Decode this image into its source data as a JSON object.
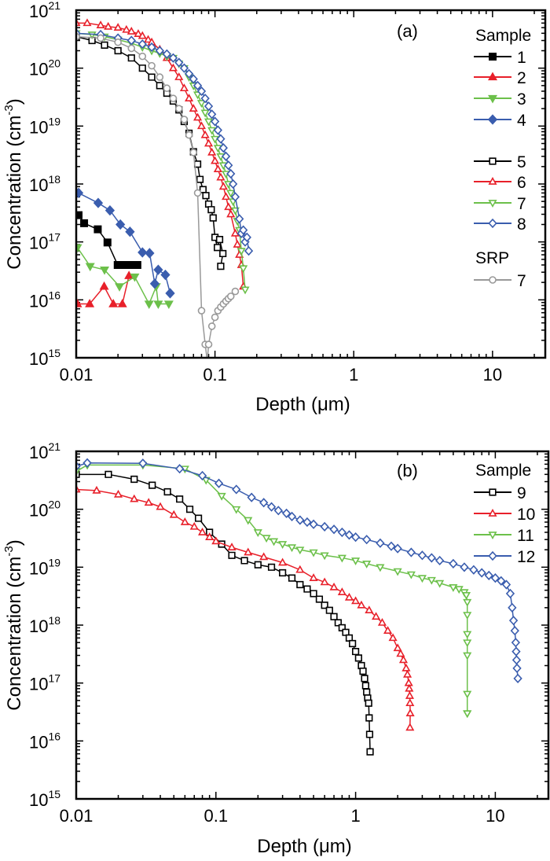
{
  "chart_data": [
    {
      "type": "scatter",
      "panel_label": "(a)",
      "xlabel": "Depth (μm)",
      "ylabel": "Concentration (cm",
      "ylabel_sup": "-3",
      "ylabel_end": ")",
      "xscale": "log",
      "yscale": "log",
      "xlim": [
        0.01,
        24
      ],
      "ylim": [
        1000000000000000.0,
        1e+21
      ],
      "x_ticks": [
        "0.01",
        "0.1",
        "1",
        "10"
      ],
      "y_ticks": [
        "15",
        "16",
        "17",
        "18",
        "19",
        "20",
        "21"
      ],
      "y_tick_base": "10",
      "grid": false,
      "legend_placement": "top-right",
      "legend_headings": [
        "Sample",
        "SRP"
      ],
      "series": [
        {
          "name": "1",
          "color": "#000000",
          "marker": "square",
          "filled": true,
          "group": "Sample",
          "x": [
            0.0104,
            0.0114,
            0.0143,
            0.0168,
            0.0199,
            0.0222,
            0.0247,
            0.0276
          ],
          "y": [
            2.9e+17,
            2.1e+17,
            1.65e+17,
            9.8e+16,
            4e+16,
            4e+16,
            4e+16,
            4e+16
          ]
        },
        {
          "name": "2",
          "color": "#e8202a",
          "marker": "triangle-up",
          "filled": true,
          "group": "Sample",
          "x": [
            0.0102,
            0.0125,
            0.0159,
            0.0185,
            0.0215,
            0.024
          ],
          "y": [
            8500000000000000.0,
            8500000000000000.0,
            1.7e+16,
            8500000000000000.0,
            8500000000000000.0,
            2.6e+16
          ]
        },
        {
          "name": "3",
          "color": "#6cc04a",
          "marker": "triangle-down",
          "filled": true,
          "group": "Sample",
          "x": [
            0.0102,
            0.0126,
            0.016,
            0.0205,
            0.0264,
            0.0335,
            0.0377,
            0.039,
            0.0465
          ],
          "y": [
            8e+16,
            3.8e+16,
            3.3e+16,
            1.7e+16,
            2.5e+16,
            8500000000000000.0,
            1.7e+16,
            8500000000000000.0,
            8500000000000000.0
          ]
        },
        {
          "name": "4",
          "color": "#3a5dae",
          "marker": "diamond",
          "filled": true,
          "group": "Sample",
          "x": [
            0.0104,
            0.0144,
            0.0175,
            0.0208,
            0.0244,
            0.03,
            0.0338,
            0.0368,
            0.039,
            0.0439,
            0.0475
          ],
          "y": [
            7e+17,
            4.7e+17,
            3.5e+17,
            2e+17,
            1.5e+17,
            6.6e+16,
            6.4e+16,
            1.9e+16,
            3.3e+16,
            2.7e+16,
            1.3e+16
          ]
        },
        {
          "name": "5",
          "color": "#000000",
          "marker": "square",
          "filled": false,
          "group": "Sample",
          "x": [
            0.01,
            0.013,
            0.016,
            0.02,
            0.025,
            0.03,
            0.035,
            0.04,
            0.045,
            0.05,
            0.055,
            0.06,
            0.065,
            0.07,
            0.075,
            0.078,
            0.082,
            0.086,
            0.09,
            0.094,
            0.097,
            0.1,
            0.104,
            0.108,
            0.114,
            0.11
          ],
          "y": [
            3.5e+20,
            3e+20,
            2.5e+20,
            2e+20,
            1.5e+20,
            1e+20,
            7e+19,
            5e+19,
            3.7e+19,
            2.7e+19,
            1.9e+19,
            1.2e+19,
            7.5e+18,
            3.6e+18,
            2.2e+18,
            1.2e+18,
            8e+17,
            6.3e+17,
            4.5e+17,
            3.6e+17,
            2.6e+17,
            1.2e+17,
            8e+16,
            1.1e+17,
            6.3e+16,
            3.8e+16
          ]
        },
        {
          "name": "6",
          "color": "#e8202a",
          "marker": "triangle-up",
          "filled": false,
          "group": "Sample",
          "x": [
            0.01,
            0.012,
            0.015,
            0.017,
            0.02,
            0.023,
            0.025,
            0.028,
            0.03,
            0.033,
            0.035,
            0.04,
            0.045,
            0.05,
            0.055,
            0.06,
            0.065,
            0.07,
            0.075,
            0.08,
            0.085,
            0.09,
            0.095,
            0.1,
            0.105,
            0.11,
            0.115,
            0.12,
            0.125,
            0.13,
            0.14,
            0.145,
            0.15,
            0.155,
            0.16
          ],
          "y": [
            6e+20,
            6e+20,
            5.5e+20,
            5.2e+20,
            5e+20,
            4.6e+20,
            4.3e+20,
            3.9e+20,
            3.6e+20,
            3.1e+20,
            2.8e+20,
            2.1e+20,
            1.5e+20,
            1e+20,
            7e+19,
            4.5e+19,
            3e+19,
            2e+19,
            1.4e+19,
            1e+19,
            7e+18,
            5e+18,
            3.5e+18,
            2.5e+18,
            1.8e+18,
            1.3e+18,
            9e+17,
            6e+17,
            4e+17,
            3e+17,
            1.4e+17,
            9e+16,
            6e+16,
            4e+16,
            1.7e+16
          ]
        },
        {
          "name": "7",
          "color": "#6cc04a",
          "marker": "triangle-down",
          "filled": false,
          "group": "Sample",
          "x": [
            0.01,
            0.013,
            0.016,
            0.02,
            0.025,
            0.03,
            0.035,
            0.04,
            0.045,
            0.05,
            0.055,
            0.06,
            0.065,
            0.07,
            0.075,
            0.08,
            0.085,
            0.09,
            0.095,
            0.1,
            0.105,
            0.11,
            0.115,
            0.12,
            0.125,
            0.13,
            0.135,
            0.14,
            0.145,
            0.15,
            0.155,
            0.16,
            0.165
          ],
          "y": [
            4e+20,
            3.8e+20,
            3.5e+20,
            3.1e+20,
            2.7e+20,
            2.3e+20,
            2e+20,
            1.8e+20,
            1.6e+20,
            1.5e+20,
            1.2e+20,
            1e+20,
            7e+19,
            5e+19,
            3.5e+19,
            2.5e+19,
            1.7e+19,
            1.2e+19,
            8.5e+18,
            6e+18,
            4.2e+18,
            3e+18,
            2.1e+18,
            1.5e+18,
            1e+18,
            7e+17,
            5e+17,
            3.5e+17,
            2.3e+17,
            1.6e+17,
            7e+16,
            3.5e+16,
            1.5e+16
          ]
        },
        {
          "name": "8",
          "color": "#3a5dae",
          "marker": "diamond",
          "filled": false,
          "group": "Sample",
          "x": [
            0.01,
            0.015,
            0.02,
            0.025,
            0.03,
            0.035,
            0.04,
            0.045,
            0.05,
            0.055,
            0.06,
            0.065,
            0.07,
            0.075,
            0.08,
            0.085,
            0.09,
            0.095,
            0.1,
            0.105,
            0.11,
            0.115,
            0.12,
            0.125,
            0.13,
            0.135,
            0.14,
            0.15,
            0.155,
            0.16,
            0.165,
            0.17,
            0.175
          ],
          "y": [
            4e+20,
            3.8e+20,
            3.3e+20,
            3e+20,
            2.6e+20,
            2.3e+20,
            2e+20,
            1.75e+20,
            1.5e+20,
            1.25e+20,
            1e+20,
            8e+19,
            6.5e+19,
            5e+19,
            4e+19,
            3e+19,
            2.2e+19,
            1.6e+19,
            1.2e+19,
            8.5e+18,
            6e+18,
            4.2e+18,
            3e+18,
            2.1e+18,
            1.5e+18,
            1e+18,
            6e+17,
            2.5e+17,
            1.4e+17,
            1.6e+17,
            1e+17,
            1.2e+17,
            7e+16
          ]
        },
        {
          "name": "7",
          "color": "#999999",
          "marker": "circle",
          "filled": false,
          "group": "SRP",
          "x": [
            0.01,
            0.015,
            0.02,
            0.025,
            0.03,
            0.035,
            0.04,
            0.045,
            0.05,
            0.055,
            0.06,
            0.065,
            0.07,
            0.075,
            0.08,
            0.085,
            0.088,
            0.09,
            0.095,
            0.1,
            0.105,
            0.11,
            0.115,
            0.12,
            0.125,
            0.13,
            0.14
          ],
          "y": [
            3.5e+20,
            3.3e+20,
            2.8e+20,
            2.2e+20,
            1.6e+20,
            1.1e+20,
            7e+19,
            4.5e+19,
            3e+19,
            2e+19,
            1.3e+19,
            7e+18,
            3.5e+18,
            7e+17,
            6500000000000000.0,
            1700000000000000.0,
            800000000000000.0,
            1700000000000000.0,
            3500000000000000.0,
            5000000000000000.0,
            6500000000000000.0,
            7500000000000000.0,
            8500000000000000.0,
            9500000000000000.0,
            1.05e+16,
            1.15e+16,
            1.4e+16
          ]
        }
      ]
    },
    {
      "type": "scatter",
      "panel_label": "(b)",
      "xlabel": "Depth (μm)",
      "ylabel": "Concentration (cm",
      "ylabel_sup": "-3",
      "ylabel_end": ")",
      "xscale": "log",
      "yscale": "log",
      "xlim": [
        0.01,
        24
      ],
      "ylim": [
        1000000000000000.0,
        1e+21
      ],
      "x_ticks": [
        "0.01",
        "0.1",
        "1",
        "10"
      ],
      "y_ticks": [
        "15",
        "16",
        "17",
        "18",
        "19",
        "20",
        "21"
      ],
      "y_tick_base": "10",
      "grid": false,
      "legend_placement": "top-right",
      "legend_headings": [
        "Sample"
      ],
      "series": [
        {
          "name": "9",
          "color": "#000000",
          "marker": "square",
          "filled": false,
          "group": "Sample",
          "x": [
            0.01,
            0.017,
            0.026,
            0.035,
            0.045,
            0.055,
            0.065,
            0.075,
            0.09,
            0.11,
            0.13,
            0.16,
            0.2,
            0.25,
            0.3,
            0.35,
            0.4,
            0.45,
            0.5,
            0.55,
            0.6,
            0.65,
            0.7,
            0.75,
            0.8,
            0.85,
            0.9,
            0.95,
            1.0,
            1.05,
            1.1,
            1.13,
            1.16,
            1.18,
            1.2,
            1.22,
            1.24,
            1.25,
            1.26,
            1.27
          ],
          "y": [
            4e+20,
            4e+20,
            3.3e+20,
            2.6e+20,
            2e+20,
            1.5e+20,
            1e+20,
            7e+19,
            4e+19,
            2.5e+19,
            1.6e+19,
            1.3e+19,
            1.1e+19,
            1e+19,
            8e+18,
            6.5e+18,
            5e+18,
            4.2e+18,
            3.5e+18,
            2.8e+18,
            2.2e+18,
            1.8e+18,
            1.4e+18,
            1.1e+18,
            9e+17,
            7.5e+17,
            6e+17,
            4.8e+17,
            3.5e+17,
            2.7e+17,
            2e+17,
            1.6e+17,
            1.2e+17,
            9e+16,
            7e+16,
            5.5e+16,
            4.5e+16,
            2.5e+16,
            1.3e+16,
            6500000000000000.0
          ]
        },
        {
          "name": "10",
          "color": "#e8202a",
          "marker": "triangle-up",
          "filled": false,
          "group": "Sample",
          "x": [
            0.01,
            0.014,
            0.02,
            0.026,
            0.033,
            0.04,
            0.05,
            0.06,
            0.07,
            0.08,
            0.09,
            0.1,
            0.13,
            0.17,
            0.22,
            0.3,
            0.4,
            0.5,
            0.6,
            0.7,
            0.8,
            0.9,
            1.0,
            1.1,
            1.25,
            1.4,
            1.55,
            1.7,
            1.85,
            2.0,
            2.1,
            2.2,
            2.3,
            2.35,
            2.4,
            2.42,
            2.44,
            2.45,
            2.46,
            2.45
          ],
          "y": [
            2.2e+20,
            2.1e+20,
            1.8e+20,
            1.5e+20,
            1.3e+20,
            1.1e+20,
            8e+19,
            6e+19,
            5e+19,
            4e+19,
            3.3e+19,
            2.8e+19,
            2.2e+19,
            1.8e+19,
            1.5e+19,
            1.2e+19,
            9e+18,
            6.5e+18,
            5.5e+18,
            4.5e+18,
            3.7e+18,
            3e+18,
            2.6e+18,
            2.2e+18,
            1.8e+18,
            1.4e+18,
            1.1e+18,
            8e+17,
            6e+17,
            4e+17,
            3.2e+17,
            2.5e+17,
            1.8e+17,
            1.4e+17,
            1e+17,
            8e+16,
            6e+16,
            4.5e+16,
            3e+16,
            1.7e+16
          ]
        },
        {
          "name": "11",
          "color": "#6cc04a",
          "marker": "triangle-down",
          "filled": false,
          "group": "Sample",
          "x": [
            0.01,
            0.012,
            0.03,
            0.06,
            0.085,
            0.11,
            0.14,
            0.17,
            0.2,
            0.23,
            0.26,
            0.3,
            0.35,
            0.4,
            0.5,
            0.6,
            0.8,
            1.0,
            1.2,
            1.5,
            2.0,
            2.5,
            3.0,
            3.5,
            4.0,
            5.0,
            5.5,
            6.0,
            6.2,
            6.3,
            6.3,
            6.3,
            6.3,
            6.3,
            6.3,
            6.3,
            6.3
          ],
          "y": [
            4.5e+20,
            5.8e+20,
            5.8e+20,
            5e+20,
            3.2e+20,
            1.7e+20,
            1e+20,
            6.5e+19,
            4e+19,
            3.2e+19,
            2.8e+19,
            2.5e+19,
            2.2e+19,
            2e+19,
            1.8e+19,
            1.6e+19,
            1.45e+19,
            1.3e+19,
            1.15e+19,
            1e+19,
            8.5e+18,
            7.5e+18,
            6.5e+18,
            6e+18,
            5.3e+18,
            4.5e+18,
            4.2e+18,
            3.7e+18,
            3.3e+18,
            2.5e+18,
            1.5e+18,
            7e+17,
            5e+17,
            3e+17,
            6.5e+16,
            3e+16,
            3e+16
          ]
        },
        {
          "name": "12",
          "color": "#3a5dae",
          "marker": "diamond",
          "filled": false,
          "group": "Sample",
          "x": [
            0.01,
            0.012,
            0.03,
            0.055,
            0.08,
            0.105,
            0.14,
            0.18,
            0.22,
            0.25,
            0.28,
            0.32,
            0.35,
            0.4,
            0.45,
            0.5,
            0.6,
            0.7,
            0.8,
            0.9,
            1.0,
            1.2,
            1.5,
            1.8,
            2.0,
            2.5,
            3.0,
            3.5,
            4.0,
            5.0,
            6.0,
            7.0,
            8.0,
            9.0,
            10.0,
            11.0,
            12.0,
            12.8,
            13.2,
            13.5,
            13.8,
            14.0,
            14.1,
            14.2,
            14.3,
            14.5
          ],
          "y": [
            5.5e+20,
            6.3e+20,
            6.2e+20,
            5e+20,
            3.8e+20,
            2.8e+20,
            2.2e+20,
            1.6e+20,
            1.3e+20,
            1.1e+20,
            9.5e+19,
            8.5e+19,
            7.5e+19,
            6.5e+19,
            6e+19,
            5.5e+19,
            5e+19,
            4.5e+19,
            4e+19,
            3.6e+19,
            3.3e+19,
            3e+19,
            2.6e+19,
            2.3e+19,
            2.1e+19,
            1.8e+19,
            1.6e+19,
            1.45e+19,
            1.3e+19,
            1.15e+19,
            1e+19,
            9e+18,
            8e+18,
            7.2e+18,
            6.5e+18,
            5.8e+18,
            5e+18,
            3.5e+18,
            2e+18,
            1.2e+18,
            8e+17,
            5e+17,
            3.5e+17,
            2.5e+17,
            1.8e+17,
            1.2e+17
          ]
        }
      ]
    }
  ]
}
